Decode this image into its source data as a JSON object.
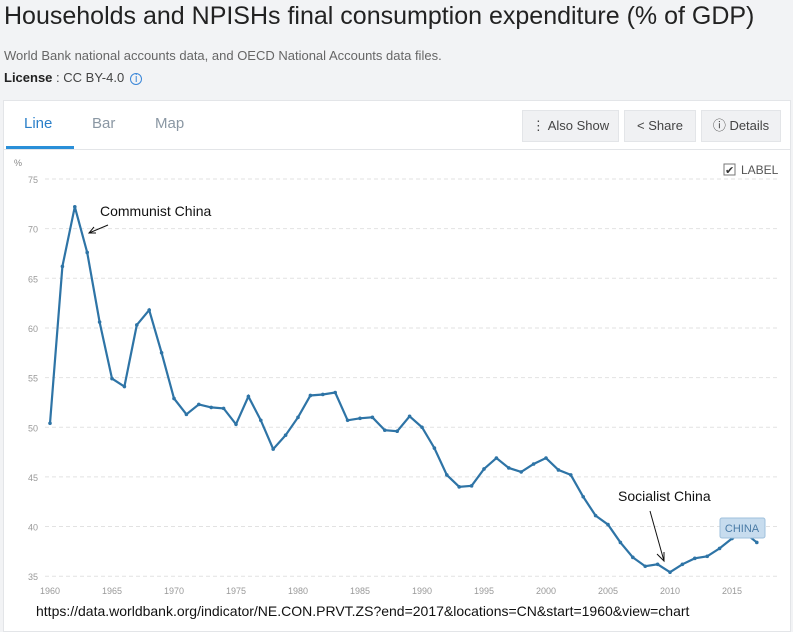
{
  "header": {
    "title": "Households and NPISHs final consumption expenditure (% of GDP)",
    "source": "World Bank national accounts data, and OECD National Accounts data files.",
    "license_label": "License",
    "license_value": " : CC BY-4.0",
    "info_icon": "info-icon"
  },
  "tabs": [
    {
      "label": "Line",
      "active": true
    },
    {
      "label": "Bar"
    },
    {
      "label": "Map"
    }
  ],
  "buttons": {
    "also_show": "Also Show",
    "share": "Share",
    "details": "Details"
  },
  "label_toggle": {
    "label": "LABEL",
    "checked": true
  },
  "url": "https://data.worldbank.org/indicator/NE.CON.PRVT.ZS?end=2017&locations=CN&start=1960&view=chart",
  "colors": {
    "line": "#2e74a6",
    "accent": "#2a7fc9"
  },
  "chart_data": {
    "type": "line",
    "ylabel": "%",
    "xlim": [
      1960,
      2017
    ],
    "ylim": [
      35,
      75
    ],
    "yticks": [
      35,
      40,
      45,
      50,
      55,
      60,
      65,
      70,
      75
    ],
    "xticks": [
      1960,
      1965,
      1970,
      1975,
      1980,
      1985,
      1990,
      1995,
      2000,
      2005,
      2010,
      2015
    ],
    "grid": true,
    "series": [
      {
        "name": "CHINA",
        "x": [
          1960,
          1961,
          1962,
          1963,
          1964,
          1965,
          1966,
          1967,
          1968,
          1969,
          1970,
          1971,
          1972,
          1973,
          1974,
          1975,
          1976,
          1977,
          1978,
          1979,
          1980,
          1981,
          1982,
          1983,
          1984,
          1985,
          1986,
          1987,
          1988,
          1989,
          1990,
          1991,
          1992,
          1993,
          1994,
          1995,
          1996,
          1997,
          1998,
          1999,
          2000,
          2001,
          2002,
          2003,
          2004,
          2005,
          2006,
          2007,
          2008,
          2009,
          2010,
          2011,
          2012,
          2013,
          2014,
          2015,
          2016,
          2017
        ],
        "values": [
          50.4,
          66.2,
          72.2,
          67.6,
          60.6,
          54.9,
          54.1,
          60.3,
          61.8,
          57.5,
          52.9,
          51.3,
          52.3,
          52.0,
          51.9,
          50.3,
          53.1,
          50.7,
          47.8,
          49.2,
          51.0,
          53.2,
          53.3,
          53.5,
          50.7,
          50.9,
          51.0,
          49.7,
          49.6,
          51.1,
          50.0,
          47.9,
          45.2,
          44.0,
          44.1,
          45.8,
          46.9,
          45.9,
          45.5,
          46.3,
          46.9,
          45.7,
          45.2,
          43.0,
          41.1,
          40.2,
          38.4,
          36.9,
          36.0,
          36.2,
          35.4,
          36.2,
          36.8,
          37.0,
          37.8,
          38.8,
          39.4,
          38.4
        ]
      }
    ],
    "annotations": [
      {
        "text": "Communist China",
        "x": 1963,
        "y": 69.5
      },
      {
        "text": "Socialist China",
        "x": 2010,
        "y": 36.0
      }
    ]
  }
}
